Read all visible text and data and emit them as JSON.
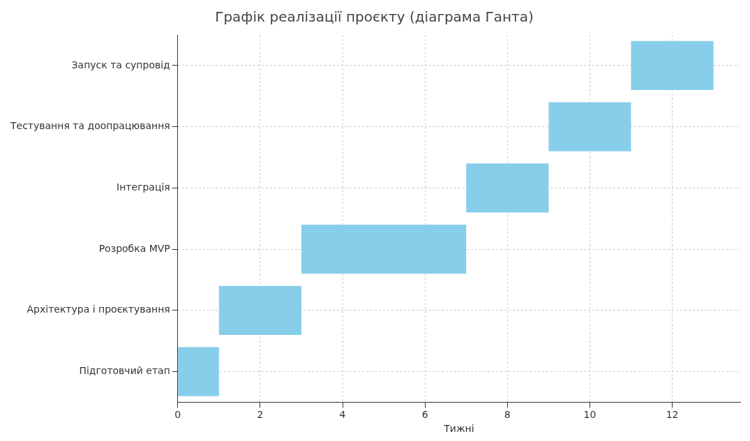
{
  "chart_data": {
    "type": "bar",
    "orientation": "horizontal",
    "title": "Графік реалізації проєкту (діаграма Ганта)",
    "xlabel": "Тижні",
    "categories": [
      "Запуск та супровід",
      "Тестування та доопрацювання",
      "Інтеграція",
      "Розробка MVP",
      "Архітектура і проєктування",
      "Підготовчий етап"
    ],
    "base": [
      11,
      9,
      7,
      3,
      1,
      0
    ],
    "values": [
      2,
      2,
      2,
      4,
      2,
      1
    ],
    "color": "#87ceeb",
    "xlim": [
      0,
      13.65
    ],
    "xticks": [
      0,
      2,
      4,
      6,
      8,
      10,
      12
    ],
    "grid": true,
    "legend": false
  }
}
